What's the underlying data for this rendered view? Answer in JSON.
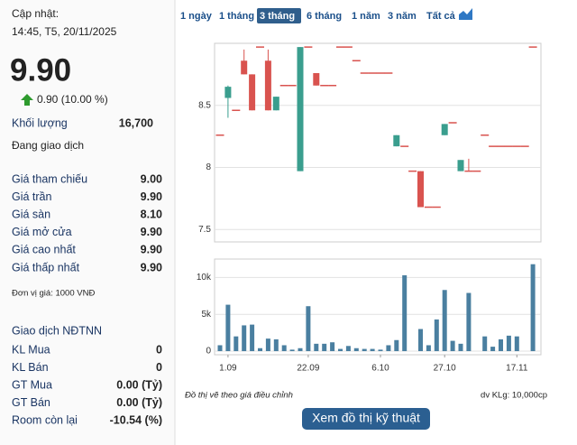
{
  "panel": {
    "updated_label": "Cập nhật:",
    "updated_time": "14:45, T5, 20/11/2025",
    "price": "9.90",
    "price_color": "#c000c0",
    "change": "0.90 (10.00 %)",
    "volume_label": "Khối lượng",
    "volume": "16,700",
    "status": "Đang giao dịch",
    "price_rows": [
      {
        "label": "Giá tham chiếu",
        "value": "9.00",
        "color": "#e0a800"
      },
      {
        "label": "Giá trần",
        "value": "9.90",
        "color": "#c000c0"
      },
      {
        "label": "Giá sàn",
        "value": "8.10",
        "color": "#1e9fd6"
      },
      {
        "label": "Giá mở cửa",
        "value": "9.90",
        "color": "#2e8b2e"
      },
      {
        "label": "Giá cao nhất",
        "value": "9.90",
        "color": "#2e8b2e"
      },
      {
        "label": "Giá thấp nhất",
        "value": "9.90",
        "color": "#2e8b2e"
      }
    ],
    "unit_note": "Đơn vị giá: 1000 VNĐ",
    "foreign_title": "Giao dịch NĐTNN",
    "foreign_rows": [
      {
        "label": "KL Mua",
        "value": "0"
      },
      {
        "label": "KL Bán",
        "value": "0"
      },
      {
        "label": "GT Mua",
        "value": "0.00 (Tỷ)"
      },
      {
        "label": "GT Bán",
        "value": "0.00 (Tỷ)"
      },
      {
        "label": "Room còn lại",
        "value": "-10.54 (%)"
      }
    ]
  },
  "periods": [
    "1 ngày",
    "1 tháng",
    "3 tháng",
    "6 tháng",
    "1 năm",
    "3 năm",
    "Tất cả"
  ],
  "active_period": 2,
  "footer": {
    "note": "Đồ thị vẽ theo giá điều chỉnh",
    "volume_unit": "dv KLg: 10,000cp",
    "button": "Xem đồ thị kỹ thuật"
  },
  "chart_data": [
    {
      "type": "candlestick",
      "up_color": "#3a9e8e",
      "down_color": "#d9534f",
      "ylim": [
        7.4,
        9.0
      ],
      "yticks": [
        7.5,
        8,
        8.5
      ],
      "open": [
        8.26,
        8.56,
        8.46,
        8.86,
        8.75,
        8.97,
        8.86,
        8.46,
        8.66,
        8.66,
        7.97,
        8.97,
        8.76,
        8.66,
        8.66,
        8.97,
        8.97,
        8.86,
        8.76,
        8.76,
        8.76,
        8.76,
        8.17,
        8.17,
        7.97,
        7.97,
        7.68,
        7.68,
        8.26,
        8.36,
        7.97,
        7.97,
        7.97,
        8.26,
        8.17,
        8.17,
        8.17,
        8.17,
        8.17,
        8.97
      ],
      "high": [
        8.26,
        8.66,
        8.46,
        8.95,
        8.75,
        8.97,
        8.95,
        8.57,
        8.66,
        8.66,
        8.97,
        8.97,
        8.76,
        8.66,
        8.66,
        8.97,
        8.97,
        8.86,
        8.76,
        8.76,
        8.76,
        8.76,
        8.26,
        8.17,
        7.97,
        7.97,
        7.68,
        7.68,
        8.35,
        8.36,
        8.06,
        8.07,
        7.97,
        8.26,
        8.17,
        8.17,
        8.17,
        8.17,
        8.17,
        8.97
      ],
      "low": [
        8.26,
        8.4,
        8.46,
        8.75,
        8.46,
        8.97,
        8.46,
        8.46,
        8.66,
        8.66,
        7.97,
        8.97,
        8.66,
        8.66,
        8.66,
        8.97,
        8.97,
        8.86,
        8.76,
        8.76,
        8.76,
        8.76,
        8.17,
        8.17,
        7.97,
        7.68,
        7.68,
        7.68,
        8.26,
        8.36,
        7.97,
        7.97,
        7.97,
        8.26,
        8.17,
        8.17,
        8.17,
        8.17,
        8.17,
        8.97
      ],
      "close": [
        8.26,
        8.65,
        8.46,
        8.75,
        8.46,
        8.97,
        8.46,
        8.57,
        8.66,
        8.66,
        8.97,
        8.97,
        8.66,
        8.66,
        8.66,
        8.97,
        8.97,
        8.86,
        8.76,
        8.76,
        8.76,
        8.76,
        8.26,
        8.17,
        7.97,
        7.68,
        7.68,
        7.68,
        8.35,
        8.36,
        8.06,
        7.97,
        7.97,
        8.26,
        8.17,
        8.17,
        8.17,
        8.17,
        8.17,
        8.97
      ]
    },
    {
      "type": "bar",
      "color": "#4a7fa0",
      "categories": [
        null,
        "1.09",
        null,
        null,
        null,
        null,
        null,
        null,
        null,
        null,
        null,
        "22.09",
        null,
        null,
        null,
        null,
        null,
        null,
        null,
        null,
        "6.10",
        null,
        null,
        null,
        null,
        null,
        null,
        null,
        "27.10",
        null,
        null,
        null,
        null,
        null,
        null,
        null,
        null,
        "17.11",
        null,
        null
      ],
      "values": [
        800,
        6300,
        2000,
        3500,
        3600,
        400,
        1700,
        1600,
        800,
        200,
        400,
        6100,
        1000,
        1000,
        1200,
        300,
        700,
        400,
        300,
        300,
        200,
        800,
        1500,
        10300,
        0,
        3000,
        800,
        4300,
        8300,
        1400,
        1000,
        7900,
        0,
        2000,
        600,
        1600,
        2100,
        2000,
        0,
        11800
      ],
      "ylim": [
        0,
        12500
      ],
      "yticks": [
        0,
        {
          "value": 5000,
          "label": "5k"
        },
        {
          "value": 10000,
          "label": "10k"
        }
      ]
    }
  ]
}
